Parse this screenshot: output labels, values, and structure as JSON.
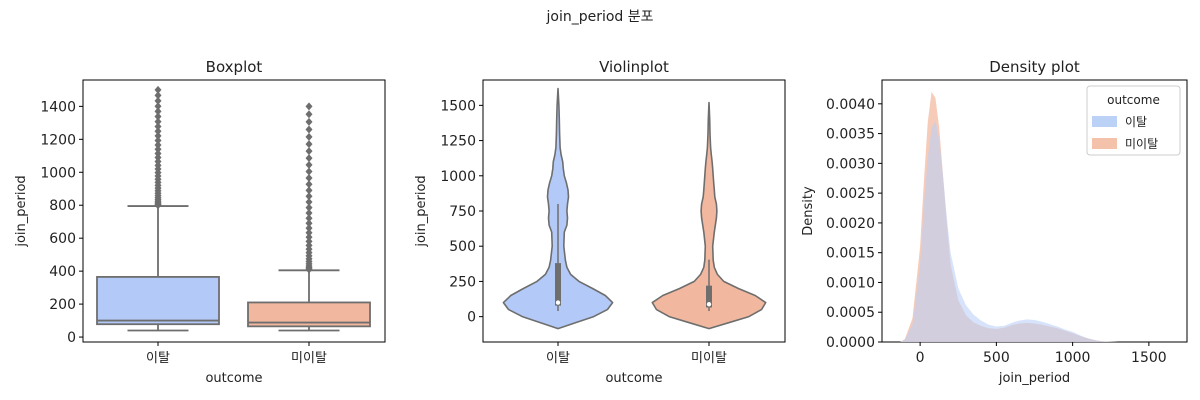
{
  "figure": {
    "suptitle": "join_period 분포"
  },
  "colors": {
    "churn": "#b3c9f7",
    "stay": "#f2b89f",
    "line": "#6e6e6e",
    "kde_churn": "#bcd1f6",
    "kde_stay": "#f4c2ab"
  },
  "chart_data": [
    {
      "type": "box",
      "title": "Boxplot",
      "xlabel": "outcome",
      "ylabel": "join_period",
      "categories": [
        "이탈",
        "미이탈"
      ],
      "ylim": [
        -30,
        1560
      ],
      "yticks": [
        0,
        200,
        400,
        600,
        800,
        1000,
        1200,
        1400
      ],
      "boxes": [
        {
          "name": "이탈",
          "whisker_low": 40,
          "q1": 78,
          "median": 100,
          "q3": 365,
          "whisker_high": 795,
          "outlier_min": 800,
          "outlier_max": 1500
        },
        {
          "name": "미이탈",
          "whisker_low": 40,
          "q1": 65,
          "median": 88,
          "q3": 210,
          "whisker_high": 405,
          "outlier_min": 410,
          "outlier_max": 1400
        }
      ]
    },
    {
      "type": "violin",
      "title": "Violinplot",
      "xlabel": "outcome",
      "ylabel": "join_period",
      "categories": [
        "이탈",
        "미이탈"
      ],
      "ylim": [
        -180,
        1680
      ],
      "yticks": [
        0,
        250,
        500,
        750,
        1000,
        1250,
        1500
      ],
      "violins": [
        {
          "name": "이탈",
          "min": -85,
          "max": 1620,
          "q1": 78,
          "median": 100,
          "q3": 380,
          "whisker_low": 40,
          "whisker_high": 800,
          "profile_y": [
            -85,
            -40,
            0,
            50,
            100,
            150,
            200,
            250,
            300,
            350,
            400,
            500,
            600,
            650,
            700,
            750,
            800,
            850,
            900,
            950,
            1000,
            1050,
            1100,
            1150,
            1200,
            1300,
            1400,
            1500,
            1620
          ],
          "profile_half_width": [
            0.0,
            0.18,
            0.34,
            0.47,
            0.52,
            0.45,
            0.33,
            0.2,
            0.12,
            0.085,
            0.07,
            0.055,
            0.06,
            0.085,
            0.09,
            0.085,
            0.09,
            0.1,
            0.095,
            0.08,
            0.06,
            0.05,
            0.045,
            0.03,
            0.02,
            0.015,
            0.012,
            0.009,
            0.0
          ]
        },
        {
          "name": "미이탈",
          "min": -85,
          "max": 1520,
          "q1": 65,
          "median": 88,
          "q3": 220,
          "whisker_low": 40,
          "whisker_high": 405,
          "profile_y": [
            -85,
            -40,
            0,
            50,
            100,
            150,
            200,
            250,
            300,
            350,
            400,
            500,
            600,
            700,
            750,
            800,
            850,
            900,
            950,
            1000,
            1050,
            1100,
            1150,
            1200,
            1300,
            1400,
            1520
          ],
          "profile_half_width": [
            0.0,
            0.2,
            0.38,
            0.5,
            0.54,
            0.44,
            0.28,
            0.14,
            0.08,
            0.05,
            0.04,
            0.035,
            0.05,
            0.07,
            0.075,
            0.07,
            0.055,
            0.05,
            0.045,
            0.04,
            0.035,
            0.03,
            0.022,
            0.015,
            0.01,
            0.007,
            0.0
          ]
        }
      ]
    },
    {
      "type": "area",
      "title": "Density plot",
      "xlabel": "join_period",
      "ylabel": "Density",
      "xlim": [
        -250,
        1750
      ],
      "ylim": [
        0,
        0.0044
      ],
      "xticks": [
        0,
        500,
        1000,
        1500
      ],
      "yticks": [
        0.0,
        0.0005,
        0.001,
        0.0015,
        0.002,
        0.0025,
        0.003,
        0.0035,
        0.004
      ],
      "legend": {
        "title": "outcome",
        "placement": "top-right"
      },
      "series": [
        {
          "name": "이탈",
          "x": [
            -130,
            -100,
            -50,
            0,
            25,
            50,
            75,
            100,
            125,
            150,
            175,
            200,
            250,
            300,
            350,
            400,
            450,
            500,
            550,
            600,
            650,
            700,
            750,
            800,
            850,
            900,
            950,
            1000,
            1050,
            1100,
            1150,
            1200,
            1300
          ],
          "y": [
            0.0,
            4e-05,
            0.0003,
            0.0013,
            0.0023,
            0.0031,
            0.0036,
            0.00372,
            0.0034,
            0.0028,
            0.0021,
            0.0015,
            0.0009,
            0.00062,
            0.00046,
            0.00036,
            0.00029,
            0.00026,
            0.00027,
            0.00032,
            0.00036,
            0.00038,
            0.00037,
            0.00034,
            0.0003,
            0.00026,
            0.00021,
            0.00017,
            0.00011,
            6e-05,
            3e-05,
            1e-05,
            0.0
          ]
        },
        {
          "name": "미이탈",
          "x": [
            -130,
            -100,
            -50,
            0,
            25,
            50,
            75,
            100,
            125,
            150,
            175,
            200,
            250,
            300,
            350,
            400,
            450,
            500,
            550,
            600,
            650,
            700,
            750,
            800,
            850,
            900,
            950,
            1000,
            1050,
            1100,
            1150,
            1200,
            1300
          ],
          "y": [
            0.0,
            5e-05,
            0.0004,
            0.0016,
            0.0027,
            0.0037,
            0.0042,
            0.0041,
            0.0036,
            0.0028,
            0.002,
            0.0013,
            0.0007,
            0.00045,
            0.00033,
            0.00027,
            0.00023,
            0.00022,
            0.00024,
            0.00028,
            0.00031,
            0.00032,
            0.00031,
            0.00029,
            0.00026,
            0.00023,
            0.00019,
            0.00015,
            0.0001,
            6e-05,
            3e-05,
            1e-05,
            0.0
          ]
        }
      ]
    }
  ]
}
